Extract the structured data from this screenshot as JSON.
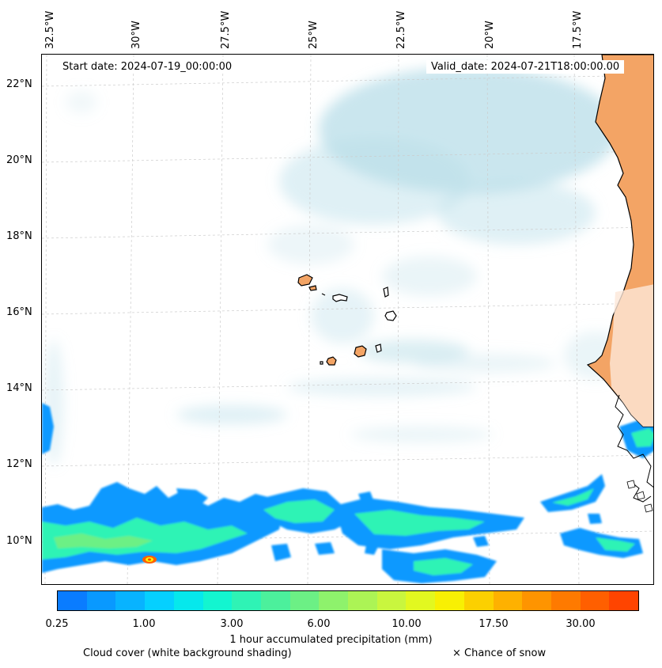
{
  "map": {
    "start_date": "Start date: 2024-07-19_00:00:00",
    "valid_date": "Valid_date: 2024-07-21T18:00:00.00",
    "lon_labels": [
      "32.5°W",
      "30°W",
      "27.5°W",
      "25°W",
      "22.5°W",
      "20°W",
      "17.5°W"
    ],
    "lat_labels": [
      "22°N",
      "20°N",
      "18°N",
      "16°N",
      "14°N",
      "12°N",
      "10°N"
    ]
  },
  "colorbar": {
    "ticks": [
      "0.25",
      "1.00",
      "3.00",
      "6.00",
      "10.00",
      "17.50",
      "30.00"
    ],
    "label": "1 hour accumulated precipitation (mm)",
    "colors": [
      "#0a7cff",
      "#0999ff",
      "#08b3ff",
      "#05d0ff",
      "#06e8ec",
      "#13f5d0",
      "#2ff3b5",
      "#4cf09c",
      "#6cf085",
      "#8ef26c",
      "#acf455",
      "#c9f63e",
      "#e2f820",
      "#f8f003",
      "#fcd000",
      "#feb100",
      "#fe9400",
      "#fe7a00",
      "#ff5f00",
      "#ff4400"
    ]
  },
  "footer": {
    "cloud_cover": "Cloud cover (white background shading)",
    "snow": "× Chance of snow"
  },
  "colors": {
    "land": "#f3a465",
    "cloud": "#b8dde8",
    "grid": "#cccccc"
  }
}
